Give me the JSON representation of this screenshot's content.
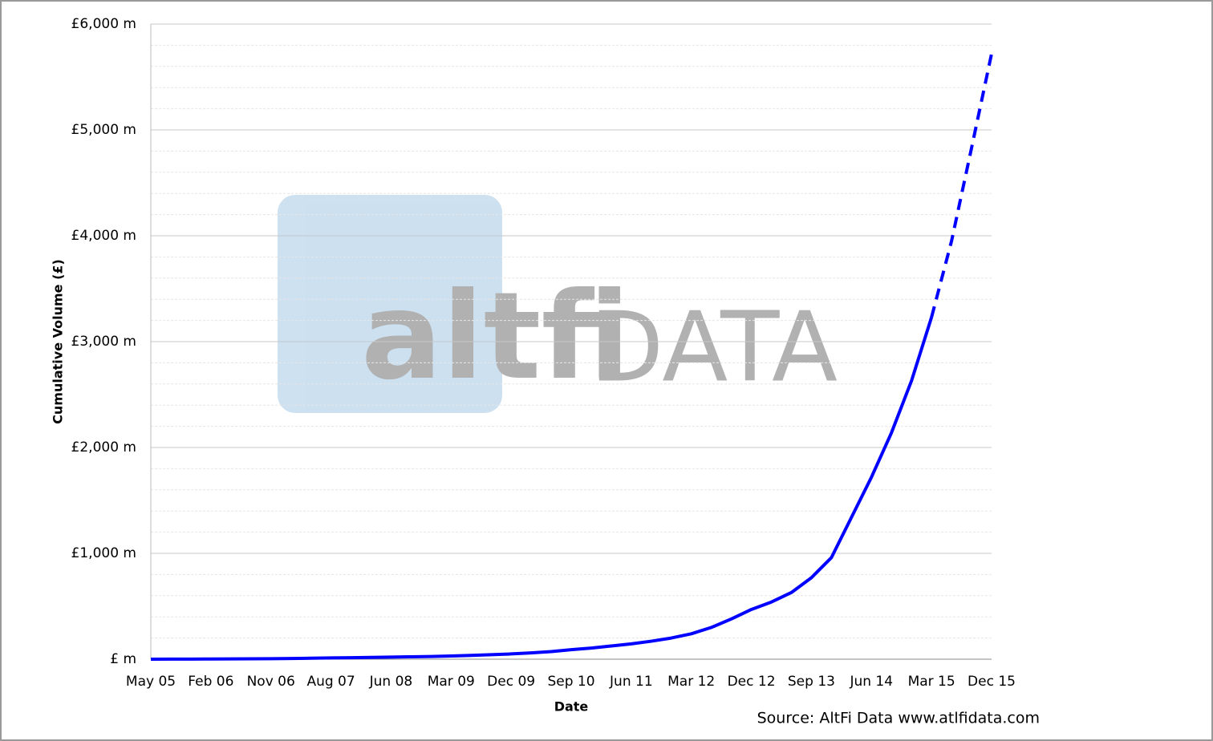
{
  "chart_data": {
    "type": "line",
    "y_label": "Cumulative Volume (£)",
    "x_label": "Date",
    "source": "Source: AltFi Data www.atlfidata.com",
    "watermark": [
      "altfi",
      "DATA"
    ],
    "x": [
      "May 05",
      null,
      null,
      "Feb 06",
      null,
      null,
      "Nov 06",
      null,
      null,
      "Aug 07",
      null,
      null,
      "Jun 08",
      null,
      null,
      "Mar 09",
      null,
      null,
      "Dec 09",
      null,
      null,
      "Sep 10",
      null,
      null,
      "Jun 11",
      null,
      null,
      "Mar 12",
      null,
      null,
      "Dec 12",
      null,
      null,
      "Sep 13",
      null,
      null,
      "Jun 14",
      null,
      null,
      "Mar 15",
      null,
      null,
      "Dec 15"
    ],
    "series": [
      {
        "color": "#0000ff",
        "dashed": false,
        "values": [
          0,
          1,
          1,
          2,
          3,
          4,
          5,
          7,
          9,
          12,
          14,
          17,
          20,
          23,
          26,
          30,
          36,
          43,
          50,
          60,
          72,
          90,
          105,
          125,
          145,
          170,
          200,
          240,
          300,
          380,
          470,
          540,
          630,
          770,
          960,
          1340,
          1720,
          2140,
          2630,
          3230,
          null,
          null,
          null
        ]
      },
      {
        "color": "#0000ff",
        "dashed": true,
        "values": [
          null,
          null,
          null,
          null,
          null,
          null,
          null,
          null,
          null,
          null,
          null,
          null,
          null,
          null,
          null,
          null,
          null,
          null,
          null,
          null,
          null,
          null,
          null,
          null,
          null,
          null,
          null,
          null,
          null,
          null,
          null,
          null,
          null,
          null,
          null,
          null,
          null,
          null,
          null,
          3230,
          3950,
          4830,
          5720
        ]
      }
    ],
    "ylim": [
      0,
      6000
    ],
    "yticks": [
      {
        "value": 0,
        "label": "£ m"
      },
      {
        "value": 1000,
        "label": "£1,000 m"
      },
      {
        "value": 2000,
        "label": "£2,000 m"
      },
      {
        "value": 3000,
        "label": "£3,000 m"
      },
      {
        "value": 4000,
        "label": "£4,000 m"
      },
      {
        "value": 5000,
        "label": "£5,000 m"
      },
      {
        "value": 6000,
        "label": "£6,000 m"
      }
    ],
    "minor_yticks": [
      200,
      400,
      600,
      800,
      1200,
      1400,
      1600,
      1800,
      2200,
      2400,
      2600,
      2800,
      3200,
      3400,
      3600,
      3800,
      4200,
      4400,
      4600,
      4800,
      5200,
      5400,
      5600,
      5800
    ],
    "grid": true
  }
}
